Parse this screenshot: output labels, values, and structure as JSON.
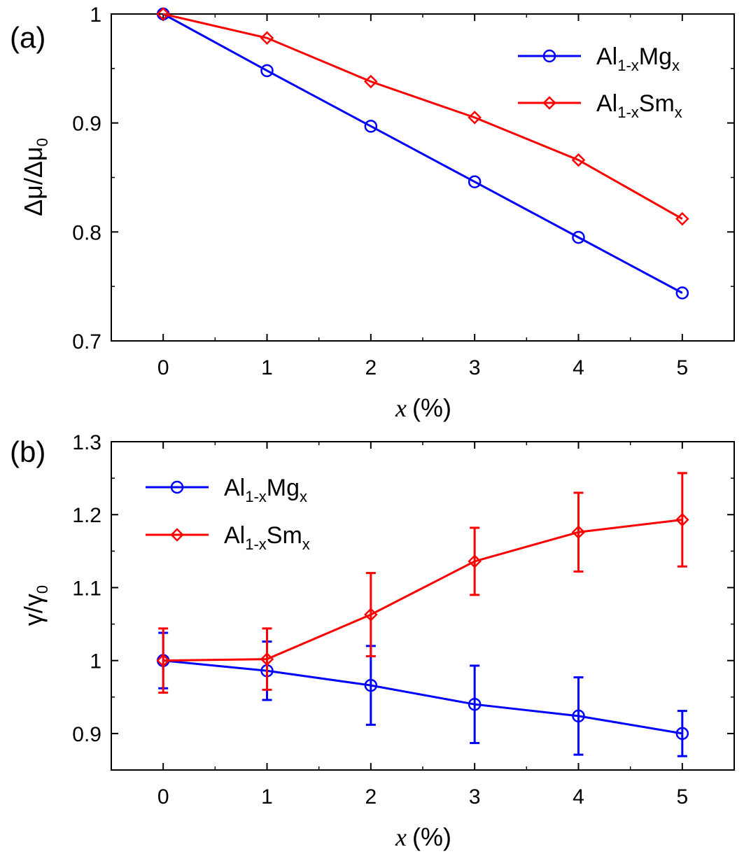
{
  "colors": {
    "mg": "#0000ff",
    "sm": "#ff0000",
    "axis": "#000000"
  },
  "chart_data": [
    {
      "type": "line",
      "panel_label": "(a)",
      "x": [
        0,
        1,
        2,
        3,
        4,
        5
      ],
      "xlim": [
        -0.5,
        5.5
      ],
      "ylim": [
        0.7,
        1.0
      ],
      "x_ticks": [
        "0",
        "1",
        "2",
        "3",
        "4",
        "5"
      ],
      "y_ticks": [
        "0.7",
        "0.8",
        "0.9",
        "1"
      ],
      "y_tick_values": [
        0.7,
        0.8,
        0.9,
        1.0
      ],
      "xlabel": {
        "var": "x",
        "unit": "(%)"
      },
      "ylabel": {
        "main": "Δμ/Δμ",
        "sub": "0"
      },
      "legend_position": "top-right",
      "series": [
        {
          "name": "Al1-xMgx",
          "label_main": "Al",
          "label_sub1": "1-x",
          "label_mid": "Mg",
          "label_sub2": "x",
          "marker": "circle",
          "values": [
            1.0,
            0.948,
            0.897,
            0.846,
            0.795,
            0.744
          ]
        },
        {
          "name": "Al1-xSmx",
          "label_main": "Al",
          "label_sub1": "1-x",
          "label_mid": "Sm",
          "label_sub2": "x",
          "marker": "diamond",
          "values": [
            1.0,
            0.978,
            0.938,
            0.905,
            0.866,
            0.812
          ]
        }
      ]
    },
    {
      "type": "line",
      "panel_label": "(b)",
      "x": [
        0,
        1,
        2,
        3,
        4,
        5
      ],
      "xlim": [
        -0.5,
        5.5
      ],
      "ylim": [
        0.85,
        1.3
      ],
      "x_ticks": [
        "0",
        "1",
        "2",
        "3",
        "4",
        "5"
      ],
      "y_ticks": [
        "0.9",
        "1",
        "1.1",
        "1.2",
        "1.3"
      ],
      "y_tick_values": [
        0.9,
        1.0,
        1.1,
        1.2,
        1.3
      ],
      "xlabel": {
        "var": "x",
        "unit": "(%)"
      },
      "ylabel": {
        "main": "γ/γ",
        "sub": "0"
      },
      "legend_position": "top-left",
      "series": [
        {
          "name": "Al1-xMgx",
          "label_main": "Al",
          "label_sub1": "1-x",
          "label_mid": "Mg",
          "label_sub2": "x",
          "marker": "circle",
          "values": [
            1.0,
            0.986,
            0.966,
            0.94,
            0.924,
            0.9
          ],
          "errors": [
            0.038,
            0.04,
            0.054,
            0.053,
            0.053,
            0.031
          ]
        },
        {
          "name": "Al1-xSmx",
          "label_main": "Al",
          "label_sub1": "1-x",
          "label_mid": "Sm",
          "label_sub2": "x",
          "marker": "diamond",
          "values": [
            1.0,
            1.002,
            1.063,
            1.136,
            1.176,
            1.193
          ],
          "errors": [
            0.044,
            0.042,
            0.057,
            0.046,
            0.054,
            0.064
          ]
        }
      ]
    }
  ]
}
